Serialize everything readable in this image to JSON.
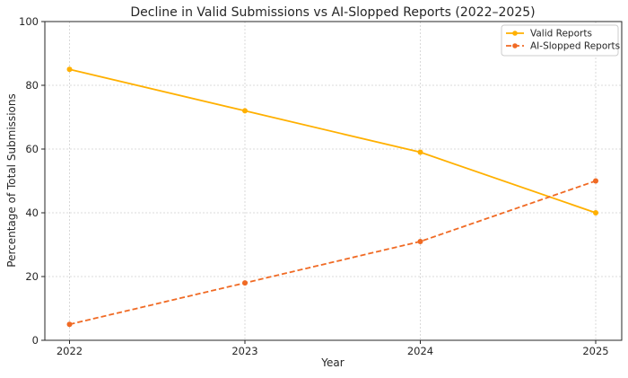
{
  "chart_data": {
    "type": "line",
    "title": "Decline in Valid Submissions vs AI-Slopped Reports (2022–2025)",
    "xlabel": "Year",
    "ylabel": "Percentage of Total Submissions",
    "categories": [
      "2022",
      "2023",
      "2024",
      "2025"
    ],
    "yticks": [
      "0",
      "20",
      "40",
      "60",
      "80",
      "100"
    ],
    "ylim": [
      0,
      100
    ],
    "grid": true,
    "legend_position": "top-right",
    "series": [
      {
        "name": "Valid Reports",
        "values": [
          85,
          72,
          59,
          40
        ],
        "color": "#FFB000",
        "style": "solid"
      },
      {
        "name": "AI-Slopped Reports",
        "values": [
          5,
          18,
          31,
          50
        ],
        "color": "#F06A24",
        "style": "dashed"
      }
    ]
  }
}
